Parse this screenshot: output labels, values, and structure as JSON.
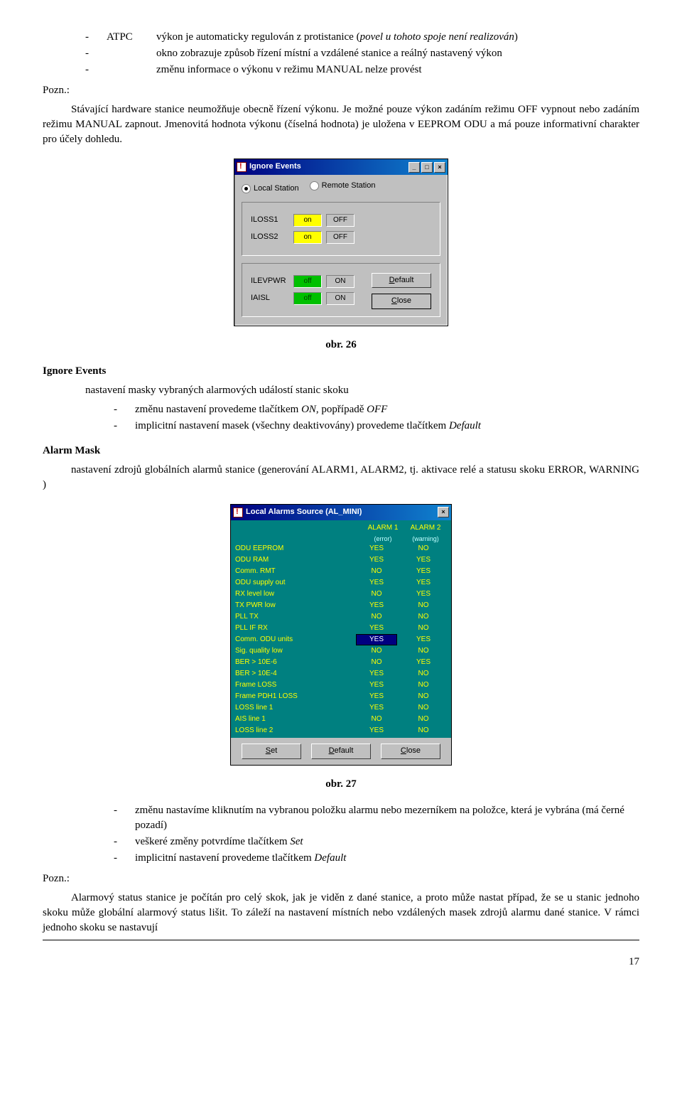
{
  "top_bullets": [
    {
      "label": "ATPC",
      "text": "výkon je automaticky regulován z protistanice (",
      "italic": "povel u tohoto spoje není realizován",
      "tail": ")"
    },
    {
      "label": "",
      "text": "okno zobrazuje způsob řízení místní a vzdálené stanice a reálný nastavený výkon"
    },
    {
      "label": "",
      "text": "změnu informace o výkonu v režimu MANUAL nelze provést"
    }
  ],
  "pozn_label": "Pozn.:",
  "pozn1": "Stávající hardware stanice neumožňuje obecně řízení výkonu. Je možné pouze výkon zadáním režimu OFF vypnout nebo zadáním režimu MANUAL zapnout. Jmenovitá hodnota výkonu (číselná hodnota) je uložena v EEPROM ODU a má pouze informativní charakter pro účely dohledu.",
  "dlg1": {
    "title": "Ignore Events",
    "radio": [
      "Local Station",
      "Remote Station"
    ],
    "rows_top": [
      {
        "name": "ILOSS1",
        "on": "on",
        "off": "OFF",
        "on_class": "yellow"
      },
      {
        "name": "ILOSS2",
        "on": "on",
        "off": "OFF",
        "on_class": "yellow"
      }
    ],
    "rows_bot": [
      {
        "name": "ILEVPWR",
        "on": "off",
        "off": "ON",
        "on_class": "green"
      },
      {
        "name": "IAISL",
        "on": "off",
        "off": "ON",
        "on_class": "green"
      }
    ],
    "btn_default": "Default",
    "btn_close": "Close"
  },
  "caption1": "obr. 26",
  "ignore_title": "Ignore Events",
  "ignore_text": "nastavení masky vybraných alarmových událostí stanic skoku",
  "ignore_bullets": [
    "změnu nastavení provedeme tlačítkem <i>ON</i>, popřípadě <i>OFF</i>",
    "implicitní nastavení masek (všechny deaktivovány) provedeme tlačítkem <i>Default</i>"
  ],
  "alarm_title": "Alarm Mask",
  "alarm_text": "nastavení zdrojů globálních alarmů stanice (generování ALARM1, ALARM2, tj. aktivace relé a statusu skoku ERROR, WARNING )",
  "dlg2": {
    "title": "Local Alarms Source (AL_MINI)",
    "col1": "ALARM 1",
    "col1s": "(error)",
    "col2": "ALARM 2",
    "col2s": "(warning)",
    "rows": [
      {
        "n": "ODU EEPROM",
        "a": "YES",
        "b": "NO"
      },
      {
        "n": "ODU RAM",
        "a": "YES",
        "b": "YES"
      },
      {
        "n": "Comm. RMT",
        "a": "NO",
        "b": "YES"
      },
      {
        "n": "ODU supply out",
        "a": "YES",
        "b": "YES"
      },
      {
        "n": "RX level low",
        "a": "NO",
        "b": "YES"
      },
      {
        "n": "TX PWR low",
        "a": "YES",
        "b": "NO"
      },
      {
        "n": "PLL TX",
        "a": "NO",
        "b": "NO"
      },
      {
        "n": "PLL IF RX",
        "a": "YES",
        "b": "NO"
      },
      {
        "n": "Comm. ODU units",
        "a": "YES",
        "b": "YES",
        "selA": true
      },
      {
        "n": "Sig. quality low",
        "a": "NO",
        "b": "NO"
      },
      {
        "n": "BER > 10E-6",
        "a": "NO",
        "b": "YES"
      },
      {
        "n": "BER > 10E-4",
        "a": "YES",
        "b": "NO"
      },
      {
        "n": "Frame LOSS",
        "a": "YES",
        "b": "NO"
      },
      {
        "n": "Frame PDH1 LOSS",
        "a": "YES",
        "b": "NO"
      },
      {
        "n": "LOSS line 1",
        "a": "YES",
        "b": "NO"
      },
      {
        "n": "AIS line 1",
        "a": "NO",
        "b": "NO"
      },
      {
        "n": "LOSS line 2",
        "a": "YES",
        "b": "NO"
      }
    ],
    "btn_set": "Set",
    "btn_default": "Default",
    "btn_close": "Close"
  },
  "caption2": "obr. 27",
  "bottom_bullets": [
    "změnu nastavíme kliknutím na vybranou položku alarmu nebo mezerníkem na položce, která je vybrána (má černé pozadí)",
    "veškeré změny potvrdíme tlačítkem <i>Set</i>",
    "implicitní nastavení provedeme tlačítkem <i>Default</i>"
  ],
  "pozn2": "Alarmový status stanice je počítán pro celý skok, jak je viděn z dané stanice, a proto může nastat případ, že se u stanic jednoho skoku může globální alarmový status lišit. To záleží na nastavení místních nebo vzdálených masek zdrojů alarmu dané stanice. V rámci jednoho skoku se nastavují",
  "page": "17"
}
